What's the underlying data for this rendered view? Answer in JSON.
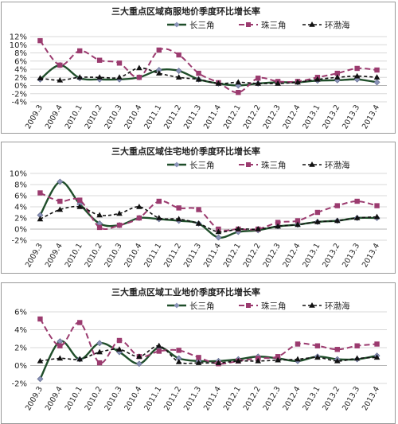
{
  "chart_data": [
    {
      "type": "line",
      "title": "三大重点区域商服地价季度环比增长率",
      "categories": [
        "2009.3",
        "2009.4",
        "2010.1",
        "2010.2",
        "2010.3",
        "2010.4",
        "2011.1",
        "2011.2",
        "2011.3",
        "2011.4",
        "2012.1",
        "2012.2",
        "2012.3",
        "2012.4",
        "2013.1",
        "2013.2",
        "2013.3",
        "2013.4"
      ],
      "yticks": [
        "-4%",
        "-2%",
        "0%",
        "2%",
        "4%",
        "6%",
        "8%",
        "10%",
        "12%"
      ],
      "ylim": [
        -4,
        12
      ],
      "legend_position": "top-right",
      "series": [
        {
          "name": "长三角",
          "values": [
            1.5,
            5.0,
            1.8,
            1.5,
            1.5,
            2.0,
            3.8,
            3.6,
            1.5,
            0.5,
            0.0,
            0.5,
            0.8,
            0.8,
            1.2,
            1.3,
            1.5,
            0.8
          ]
        },
        {
          "name": "珠三角",
          "values": [
            11.0,
            5.0,
            8.5,
            6.2,
            5.5,
            2.0,
            8.7,
            7.5,
            3.0,
            0.7,
            -1.7,
            1.8,
            1.0,
            1.0,
            2.0,
            3.0,
            4.2,
            3.8
          ]
        },
        {
          "name": "环渤海",
          "values": [
            1.8,
            1.3,
            2.0,
            2.0,
            2.0,
            4.3,
            3.0,
            2.0,
            1.5,
            0.5,
            0.8,
            0.5,
            0.5,
            0.8,
            1.5,
            2.0,
            2.3,
            2.0
          ]
        }
      ]
    },
    {
      "type": "line",
      "title": "三大重点区域住宅地价季度环比增长率",
      "categories": [
        "2009.3",
        "2009.4",
        "2010.1",
        "2010.2",
        "2010.3",
        "2010.4",
        "2011.1",
        "2011.2",
        "2011.3",
        "2011.4",
        "2012.1",
        "2012.2",
        "2012.3",
        "2012.4",
        "2013.1",
        "2013.2",
        "2013.3",
        "2013.4"
      ],
      "yticks": [
        "-2%",
        "0%",
        "2%",
        "4%",
        "6%",
        "8%",
        "10%"
      ],
      "ylim": [
        -2,
        10
      ],
      "legend_position": "top-right",
      "series": [
        {
          "name": "长三角",
          "values": [
            2.5,
            8.5,
            4.5,
            1.0,
            0.7,
            2.0,
            1.8,
            1.5,
            1.0,
            -1.5,
            -0.5,
            -0.2,
            0.5,
            0.8,
            1.3,
            1.5,
            2.0,
            2.0
          ]
        },
        {
          "name": "珠三角",
          "values": [
            6.5,
            5.0,
            5.2,
            0.3,
            0.7,
            2.0,
            5.0,
            3.8,
            3.5,
            0.0,
            0.0,
            0.0,
            1.2,
            1.5,
            3.0,
            4.2,
            5.0,
            4.2
          ]
        },
        {
          "name": "环渤海",
          "values": [
            1.8,
            3.5,
            4.0,
            2.5,
            2.8,
            4.0,
            2.0,
            1.8,
            1.0,
            -0.5,
            0.0,
            0.0,
            0.5,
            0.8,
            1.3,
            1.5,
            2.0,
            2.2
          ]
        }
      ]
    },
    {
      "type": "line",
      "title": "三大重点区域工业地价季度环比增长率",
      "categories": [
        "2009.3",
        "2009.4",
        "2010.1",
        "2010.2",
        "2010.3",
        "2010.4",
        "2011.1",
        "2011.2",
        "2011.3",
        "2011.4",
        "2012.1",
        "2012.2",
        "2012.3",
        "2012.4",
        "2013.1",
        "2013.2",
        "2013.3",
        "2013.4"
      ],
      "yticks": [
        "-2%",
        "0%",
        "2%",
        "4%",
        "6%"
      ],
      "ylim": [
        -2,
        6
      ],
      "legend_position": "top-right",
      "series": [
        {
          "name": "长三角",
          "values": [
            -1.5,
            2.7,
            0.7,
            2.5,
            1.5,
            0.2,
            2.0,
            0.8,
            0.5,
            0.5,
            0.7,
            1.0,
            0.8,
            0.5,
            1.0,
            0.7,
            0.7,
            1.1
          ]
        },
        {
          "name": "珠三角",
          "values": [
            5.2,
            2.2,
            4.8,
            0.3,
            2.8,
            1.0,
            1.6,
            1.7,
            0.9,
            0.2,
            0.5,
            0.8,
            1.0,
            2.4,
            2.2,
            1.8,
            2.2,
            2.4
          ]
        },
        {
          "name": "环渤海",
          "values": [
            0.5,
            0.8,
            0.7,
            1.5,
            1.8,
            1.0,
            2.2,
            0.4,
            0.3,
            0.3,
            0.5,
            0.5,
            0.6,
            0.7,
            0.9,
            0.5,
            0.8,
            0.9
          ]
        }
      ]
    }
  ],
  "colors": {
    "长三角": "#1f4e2a",
    "珠三角": "#9b3b6f",
    "环渤海": "#111111",
    "grid": "#d8d8d8",
    "frame": "#999999"
  }
}
